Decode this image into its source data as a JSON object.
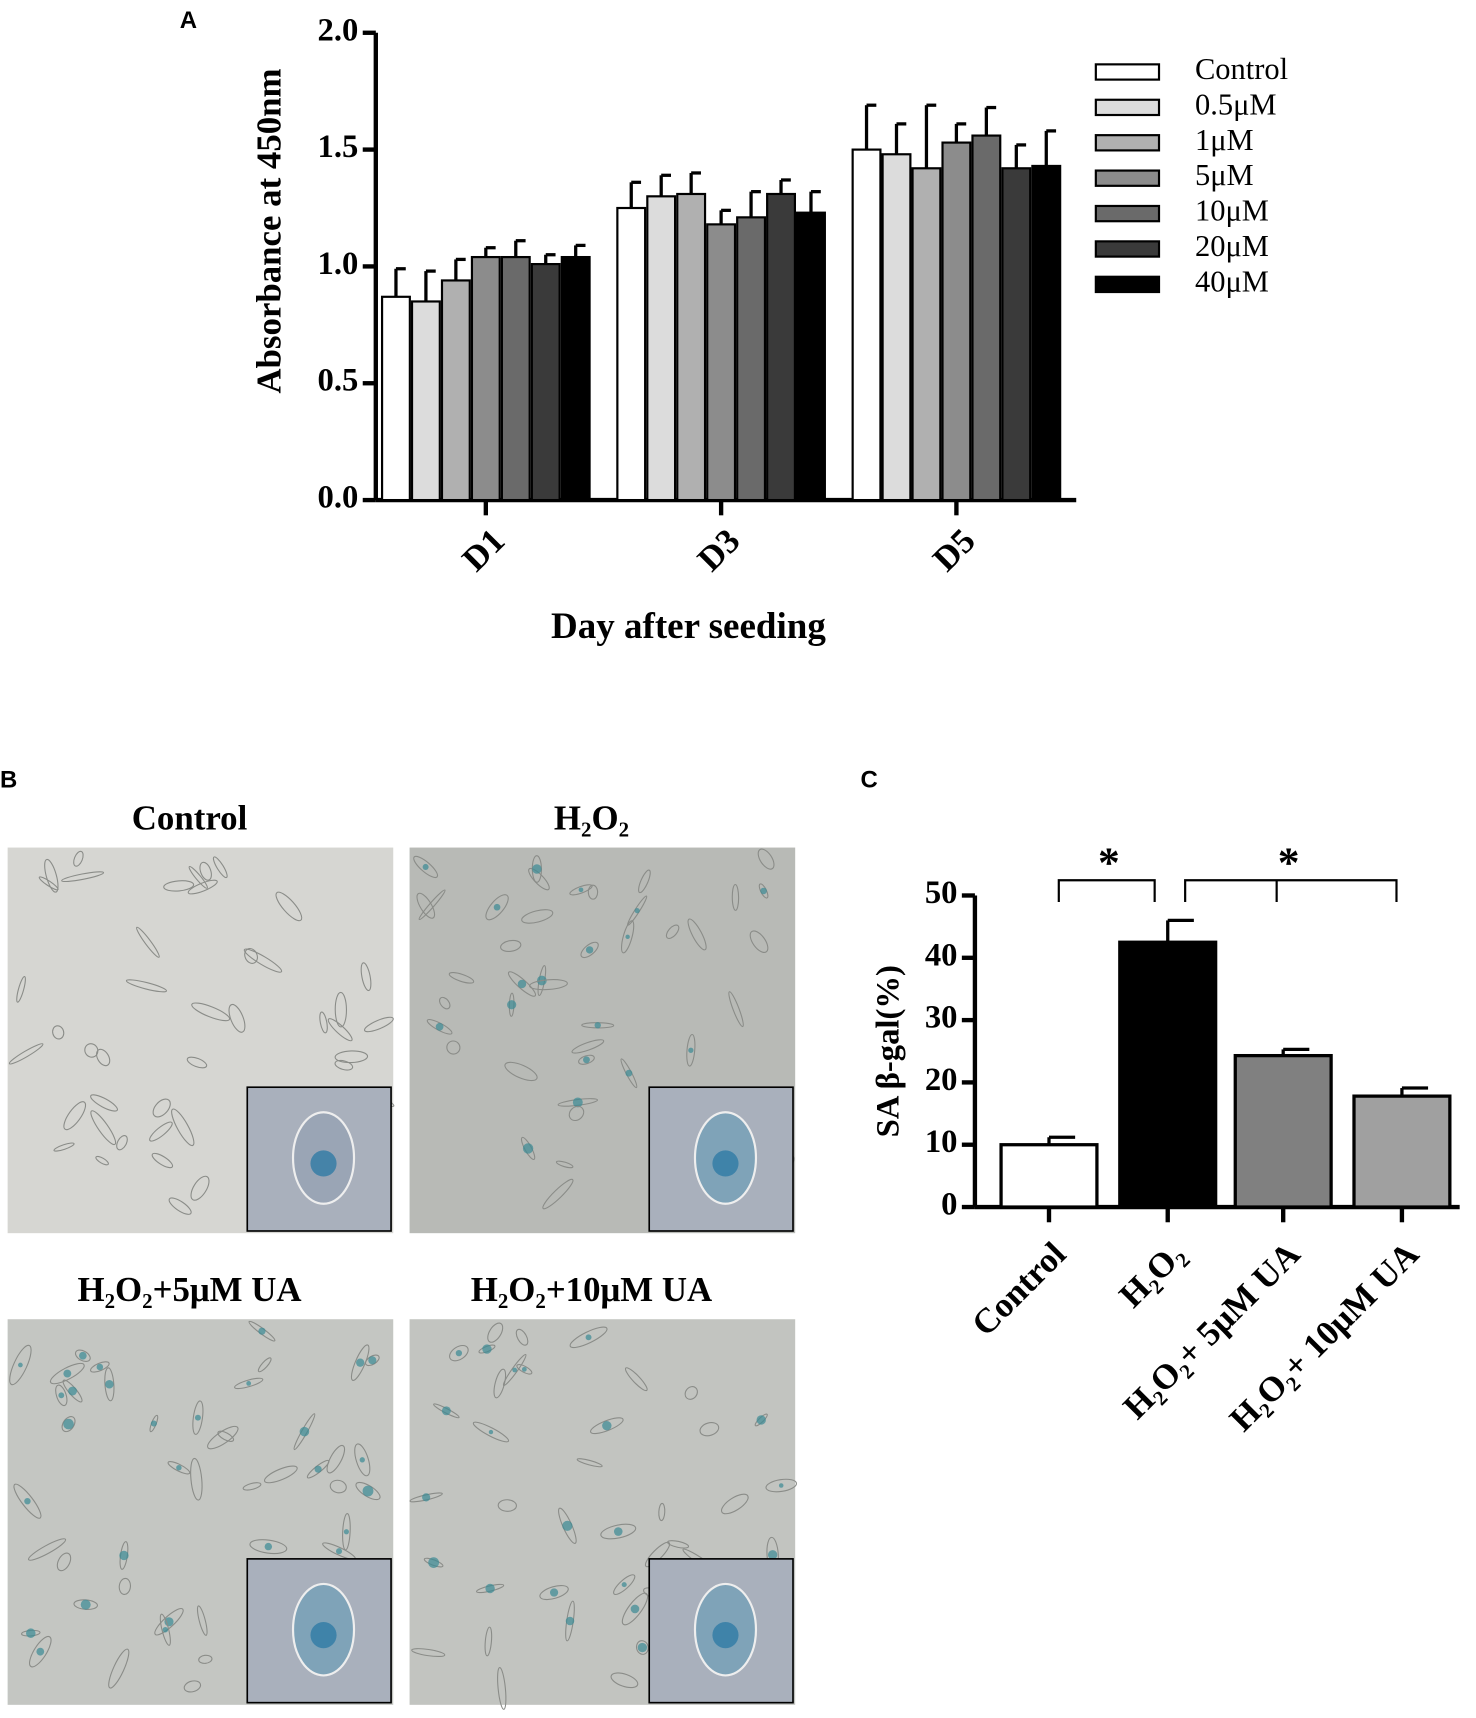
{
  "chart_data": [
    {
      "type": "bar",
      "panel_label": "A",
      "ylabel": "Absorbance at 450nm",
      "xlabel": "Day after seeding",
      "categories": [
        "D1",
        "D3",
        "D5"
      ],
      "ylim": [
        0,
        2
      ],
      "yticks": [
        {
          "value": 0,
          "label": "0.0"
        },
        0.5,
        {
          "value": 1,
          "label": "1.0"
        },
        1.5,
        {
          "value": 2,
          "label": "2.0"
        }
      ],
      "series": [
        {
          "name": "Control",
          "color": "#ffffff",
          "values": [
            0.87,
            1.25,
            1.5
          ],
          "errors": [
            0.12,
            0.11,
            0.19
          ]
        },
        {
          "name": "0.5μM",
          "color": "#dcdcdc",
          "values": [
            0.85,
            1.3,
            1.48
          ],
          "errors": [
            0.13,
            0.09,
            0.13
          ]
        },
        {
          "name": "1μM",
          "color": "#b0b0b0",
          "values": [
            0.94,
            1.31,
            1.42
          ],
          "errors": [
            0.09,
            0.09,
            0.27
          ]
        },
        {
          "name": "5μM",
          "color": "#8c8c8c",
          "values": [
            1.04,
            1.18,
            1.53
          ],
          "errors": [
            0.04,
            0.06,
            0.08
          ]
        },
        {
          "name": "10μM",
          "color": "#6a6a6a",
          "values": [
            1.04,
            1.21,
            1.56
          ],
          "errors": [
            0.07,
            0.11,
            0.12
          ]
        },
        {
          "name": "20μM",
          "color": "#3a3a3a",
          "values": [
            1.01,
            1.31,
            1.42
          ],
          "errors": [
            0.04,
            0.06,
            0.1
          ]
        },
        {
          "name": "40μM",
          "color": "#000000",
          "values": [
            1.04,
            1.23,
            1.43
          ],
          "errors": [
            0.05,
            0.09,
            0.15
          ]
        }
      ]
    },
    {
      "type": "bar",
      "panel_label": "C",
      "ylabel": "SA β-gal(%)",
      "categories": [
        "Control",
        "H₂O₂",
        "H₂O₂+ 5μM UA",
        "H₂O₂+ 10μM UA"
      ],
      "values": [
        10,
        42.5,
        24.3,
        17.8
      ],
      "errors": [
        1.2,
        3.5,
        1.0,
        1.3
      ],
      "colors": [
        "#ffffff",
        "#000000",
        "#808080",
        "#a0a0a0"
      ],
      "ylim": [
        0,
        50
      ],
      "yticks": [
        0,
        10,
        20,
        30,
        40,
        50
      ],
      "annotations": [
        "*",
        "*"
      ]
    }
  ],
  "panel_b": {
    "panel_label": "B",
    "images": [
      {
        "title": "Control"
      },
      {
        "title": "H₂O₂"
      },
      {
        "title": "H₂O₂+5μM UA"
      },
      {
        "title": "H₂O₂+10μM UA"
      }
    ]
  }
}
